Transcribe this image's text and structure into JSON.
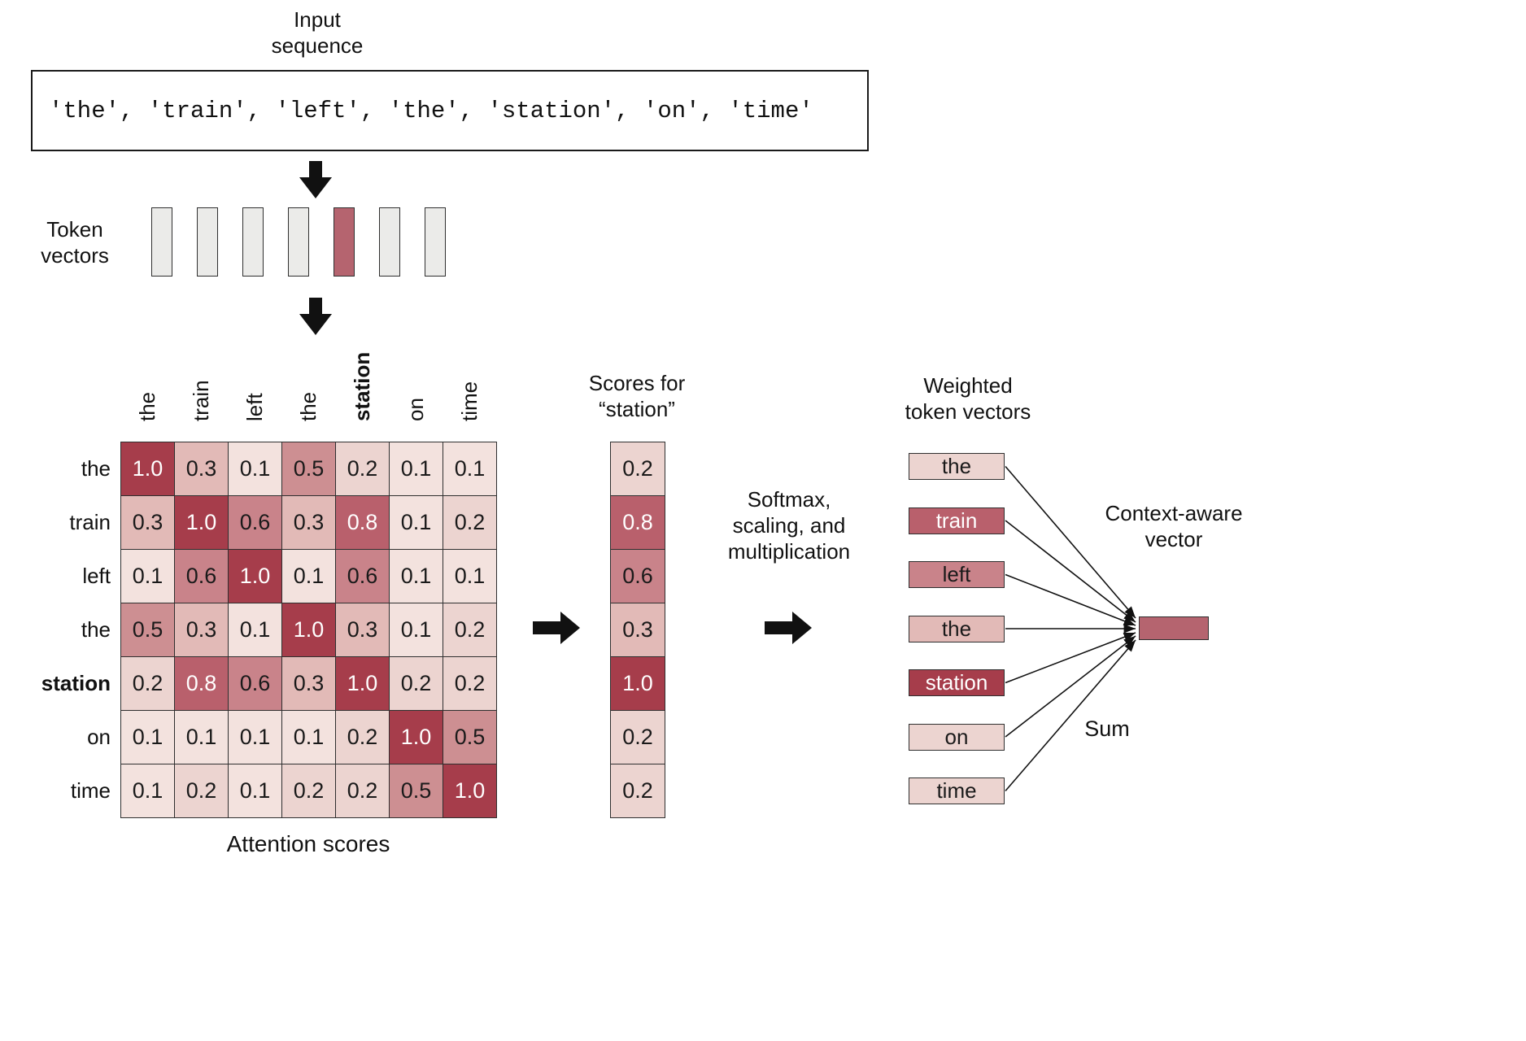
{
  "header": {
    "lines": [
      "Input",
      "sequence"
    ]
  },
  "input_sequence": "'the', 'train', 'left', 'the', 'station', 'on', 'time'",
  "token_vectors": {
    "label_lines": [
      "Token",
      "vectors"
    ],
    "count": 7,
    "highlight_index": 4
  },
  "matrix": {
    "caption": "Attention scores",
    "tokens": [
      "the",
      "train",
      "left",
      "the",
      "station",
      "on",
      "time"
    ],
    "bold_token_index": 4,
    "rows": [
      [
        "1.0",
        "0.3",
        "0.1",
        "0.5",
        "0.2",
        "0.1",
        "0.1"
      ],
      [
        "0.3",
        "1.0",
        "0.6",
        "0.3",
        "0.8",
        "0.1",
        "0.2"
      ],
      [
        "0.1",
        "0.6",
        "1.0",
        "0.1",
        "0.6",
        "0.1",
        "0.1"
      ],
      [
        "0.5",
        "0.3",
        "0.1",
        "1.0",
        "0.3",
        "0.1",
        "0.2"
      ],
      [
        "0.2",
        "0.8",
        "0.6",
        "0.3",
        "1.0",
        "0.2",
        "0.2"
      ],
      [
        "0.1",
        "0.1",
        "0.1",
        "0.1",
        "0.2",
        "1.0",
        "0.5"
      ],
      [
        "0.1",
        "0.2",
        "0.1",
        "0.2",
        "0.2",
        "0.5",
        "1.0"
      ]
    ]
  },
  "scores_column": {
    "label_lines": [
      "Scores for",
      "“station”"
    ],
    "values": [
      "0.2",
      "0.8",
      "0.6",
      "0.3",
      "1.0",
      "0.2",
      "0.2"
    ]
  },
  "softmax_label": {
    "lines": [
      "Softmax,",
      "scaling, and",
      "multiplication"
    ]
  },
  "weighted": {
    "label_lines": [
      "Weighted",
      "token vectors"
    ],
    "tokens": [
      {
        "label": "the",
        "score": "0.2"
      },
      {
        "label": "train",
        "score": "0.8"
      },
      {
        "label": "left",
        "score": "0.6"
      },
      {
        "label": "the",
        "score": "0.3"
      },
      {
        "label": "station",
        "score": "1.0"
      },
      {
        "label": "on",
        "score": "0.2"
      },
      {
        "label": "time",
        "score": "0.2"
      }
    ]
  },
  "context_vector": {
    "label_lines": [
      "Context-aware",
      "vector"
    ],
    "sum_label": "Sum",
    "color": "#b5646f"
  },
  "colors": {
    "token_vector_gray": "#ebebe9",
    "token_vector_highlight": "#b5646f",
    "arrow": "#111111",
    "border": "#2f2f2f"
  },
  "heatmap": {
    "1.0": {
      "bg": "#a63d4b",
      "fg": "#ffffff"
    },
    "0.8": {
      "bg": "#b9606c",
      "fg": "#ffffff"
    },
    "0.6": {
      "bg": "#c9838a",
      "fg": "#1a1a1a"
    },
    "0.5": {
      "bg": "#cd8f92",
      "fg": "#1a1a1a"
    },
    "0.3": {
      "bg": "#e2bab7",
      "fg": "#1a1a1a"
    },
    "0.2": {
      "bg": "#ecd4d0",
      "fg": "#1a1a1a"
    },
    "0.1": {
      "bg": "#f3e2de",
      "fg": "#1a1a1a"
    }
  }
}
